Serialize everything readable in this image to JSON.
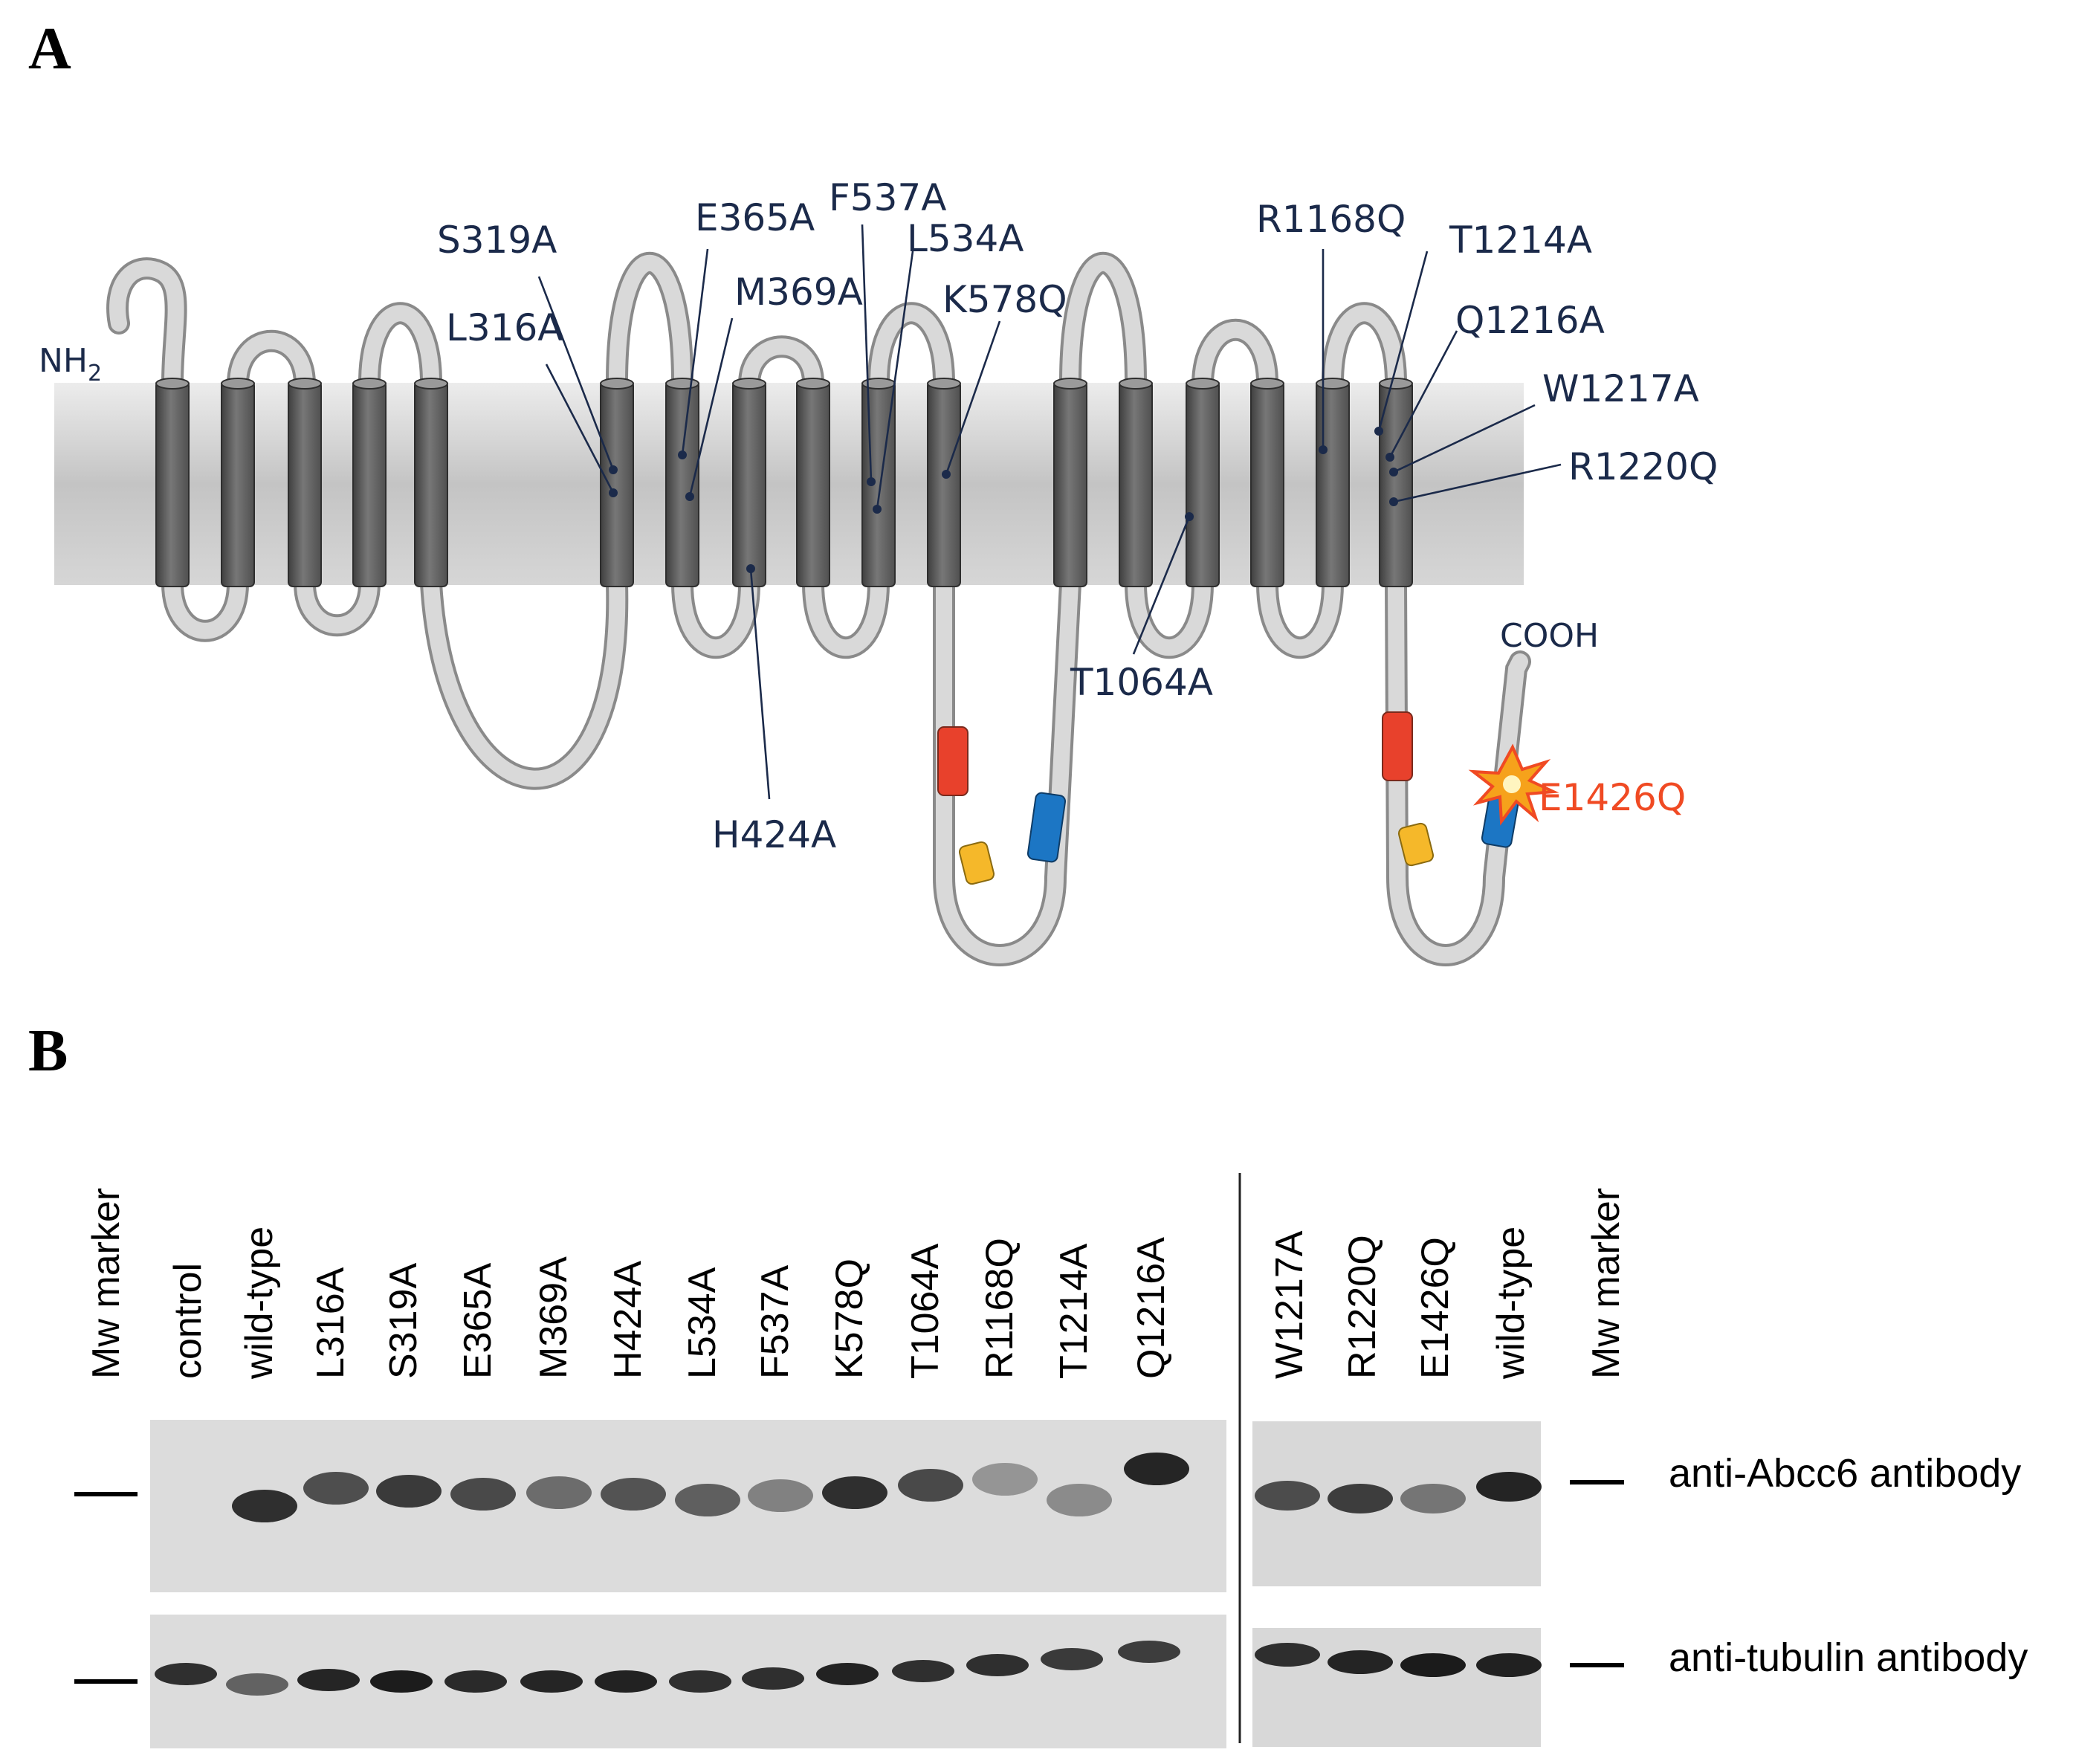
{
  "panel_a": {
    "letter": "A",
    "n_terminus": "NH",
    "n_terminus_sub": "2",
    "c_terminus": "COOH",
    "mutations": [
      "S319A",
      "L316A",
      "E365A",
      "M369A",
      "H424A",
      "F537A",
      "L534A",
      "K578Q",
      "T1064A",
      "R1168Q",
      "T1214A",
      "Q1216A",
      "W1217A",
      "R1220Q"
    ],
    "highlight_mutation": "E1426Q",
    "colors": {
      "membrane": "#cfcfcf",
      "helix": "#6b6b6b",
      "motif_red": "#e8412c",
      "motif_yellow": "#f5b82a",
      "motif_blue": "#1c76c4",
      "highlight": "#f04a23"
    }
  },
  "panel_b": {
    "letter": "B",
    "marker_label": "Mw marker",
    "lanes_left": [
      "control",
      "wild-type",
      "L316A",
      "S319A",
      "E365A",
      "M369A",
      "H424A",
      "L534A",
      "F537A",
      "K578Q",
      "T1064A",
      "R1168Q",
      "T1214A",
      "Q1216A"
    ],
    "lanes_right": [
      "W1217A",
      "R1220Q",
      "E1426Q",
      "wild-type"
    ],
    "antibodies": [
      "anti-Abcc6 antibody",
      "anti-tubulin antibody"
    ]
  }
}
